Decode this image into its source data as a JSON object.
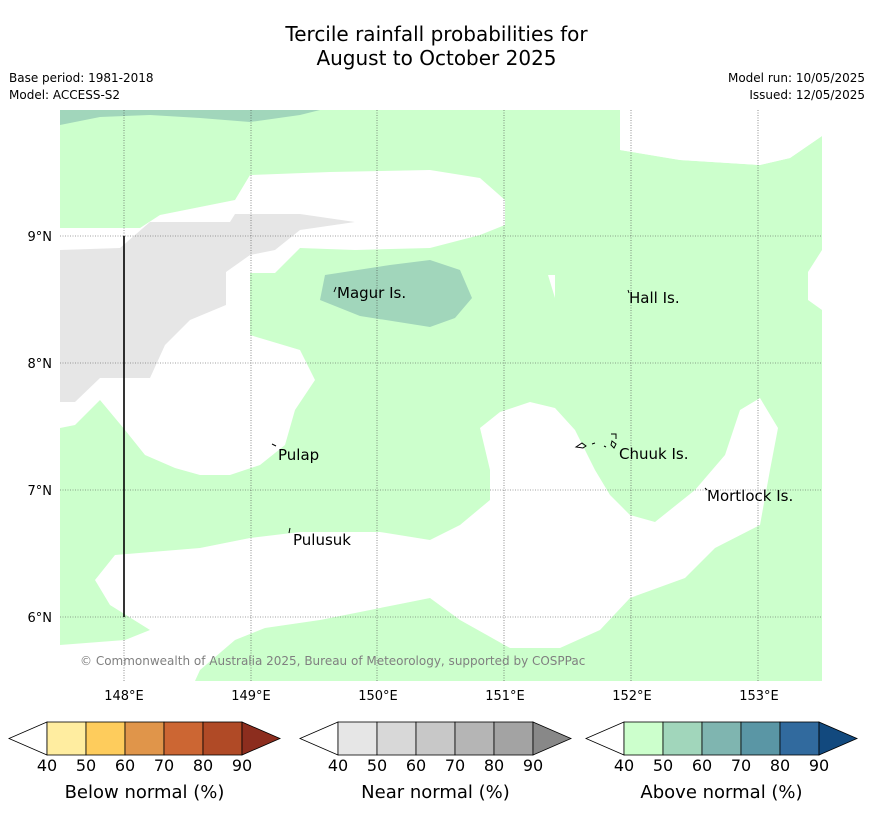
{
  "title_line1": "Tercile rainfall probabilities for",
  "title_line2": "August to October 2025",
  "base_period": "Base period: 1981-2018",
  "model": "Model: ACCESS-S2",
  "model_run": "Model run: 10/05/2025",
  "issued": "Issued: 12/05/2025",
  "copyright": "© Commonwealth of Australia 2025, Bureau of Meteorology, supported by COSPPac",
  "lat_labels": [
    "9°N",
    "8°N",
    "7°N",
    "6°N"
  ],
  "lon_labels": [
    "148°E",
    "149°E",
    "150°E",
    "151°E",
    "152°E",
    "153°E"
  ],
  "places": [
    "Magur Is.",
    "Hall Is.",
    "Pulap",
    "Chuuk Is.",
    "Mortlock Is.",
    "Pulusuk"
  ],
  "colorbars": [
    {
      "label": "Below normal (%)",
      "ticks": [
        "40",
        "50",
        "60",
        "70",
        "80",
        "90"
      ],
      "colors": [
        "#ffffff",
        "#ffeda0",
        "#fecc5c",
        "#e0954a",
        "#cc6633",
        "#b04a26",
        "#8c2d1e"
      ]
    },
    {
      "label": "Near normal (%)",
      "ticks": [
        "40",
        "50",
        "60",
        "70",
        "80",
        "90"
      ],
      "colors": [
        "#ffffff",
        "#e6e6e6",
        "#d8d8d8",
        "#c8c8c8",
        "#b5b5b5",
        "#a3a3a3",
        "#888888"
      ]
    },
    {
      "label": "Above normal (%)",
      "ticks": [
        "40",
        "50",
        "60",
        "70",
        "80",
        "90"
      ],
      "colors": [
        "#ffffff",
        "#ccffcc",
        "#a1d6bb",
        "#7fb5b0",
        "#5a96a5",
        "#316a9e",
        "#12497e"
      ]
    }
  ],
  "map_colors": {
    "above_40": "#ccffcc",
    "above_50": "#a1d6bb",
    "near_40": "#e6e6e6"
  }
}
